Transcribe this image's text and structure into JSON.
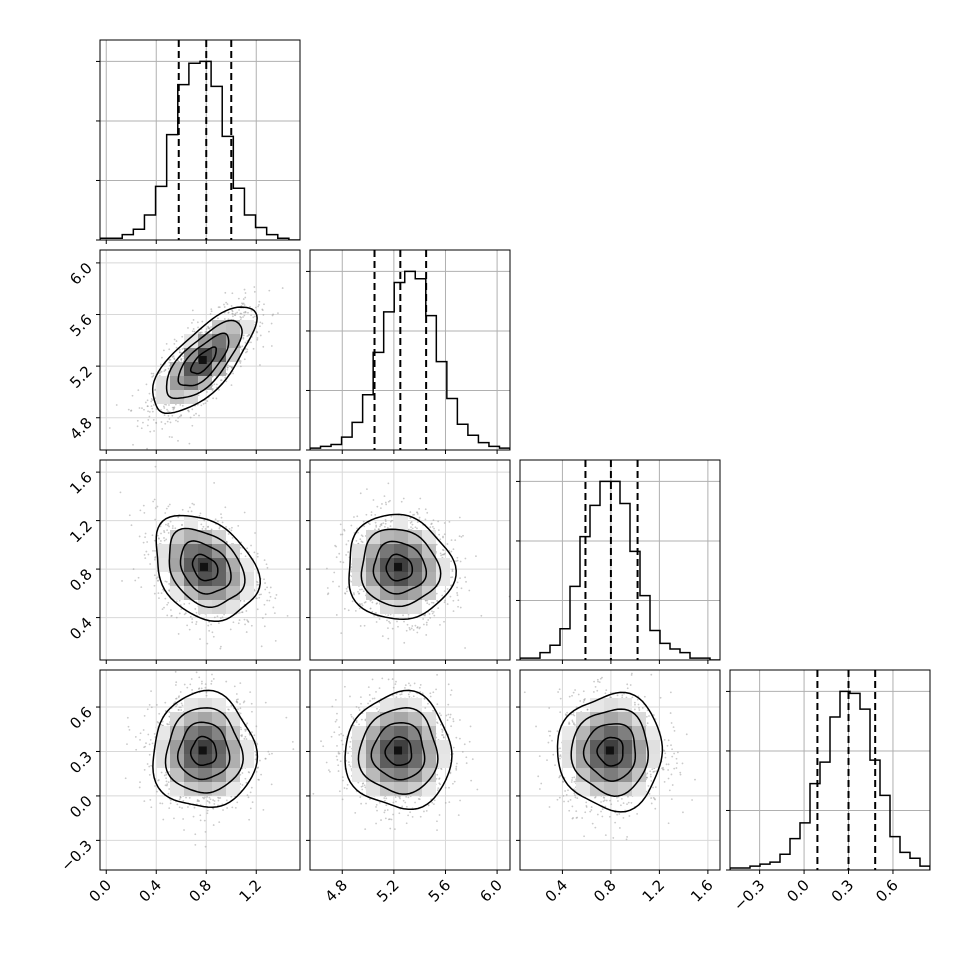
{
  "chart_data": {
    "type": "corner",
    "parameters": 4,
    "grid": true,
    "quantile_lines": "dashed",
    "density_style": "grayscale 2D histogram with contours and scatter",
    "colors": {
      "line": "#000000",
      "grid": "#b0b0b0",
      "scatter": "#9e9e9e"
    },
    "axes": [
      {
        "range": [
          -0.05,
          1.55
        ],
        "ticks": [
          0.0,
          0.4,
          0.8,
          1.2
        ],
        "tick_labels": [
          "0.0",
          "0.4",
          "0.8",
          "1.2"
        ],
        "quantiles": [
          0.58,
          0.8,
          1.0
        ]
      },
      {
        "range": [
          4.55,
          6.1
        ],
        "ticks": [
          4.8,
          5.2,
          5.6,
          6.0
        ],
        "tick_labels": [
          "4.8",
          "5.2",
          "5.6",
          "6.0"
        ],
        "quantiles": [
          5.05,
          5.25,
          5.45
        ]
      },
      {
        "range": [
          0.05,
          1.7
        ],
        "ticks": [
          0.4,
          0.8,
          1.2,
          1.6
        ],
        "tick_labels": [
          "0.4",
          "0.8",
          "1.2",
          "1.6"
        ],
        "quantiles": [
          0.59,
          0.8,
          1.02
        ]
      },
      {
        "range": [
          -0.5,
          0.85
        ],
        "ticks": [
          -0.3,
          0.0,
          0.3,
          0.6
        ],
        "tick_labels": [
          "−0.3",
          "0.0",
          "0.3",
          "0.6"
        ],
        "quantiles": [
          0.09,
          0.3,
          0.48
        ]
      }
    ],
    "histograms": [
      {
        "counts": [
          1,
          1,
          3,
          6,
          14,
          30,
          59,
          87,
          99,
          100,
          86,
          58,
          29,
          14,
          7,
          3,
          1,
          0
        ]
      },
      {
        "counts": [
          1,
          2,
          3,
          7,
          15,
          30,
          53,
          75,
          91,
          97,
          93,
          73,
          48,
          28,
          14,
          8,
          4,
          2,
          1
        ]
      },
      {
        "counts": [
          1,
          1,
          4,
          8,
          17,
          40,
          67,
          84,
          97,
          97,
          85,
          59,
          35,
          16,
          9,
          6,
          4,
          1,
          1,
          0
        ]
      },
      {
        "counts": [
          1,
          1,
          2,
          3,
          4,
          8,
          16,
          24,
          44,
          55,
          78,
          91,
          90,
          82,
          56,
          38,
          17,
          9,
          6,
          2
        ]
      }
    ],
    "joints": [
      {
        "x": 0,
        "y": 1,
        "center": [
          0.78,
          5.24
        ],
        "sd": [
          0.2,
          0.2
        ],
        "rho": 0.72
      },
      {
        "x": 0,
        "y": 2,
        "center": [
          0.79,
          0.81
        ],
        "sd": [
          0.2,
          0.21
        ],
        "rho": -0.28
      },
      {
        "x": 1,
        "y": 2,
        "center": [
          5.24,
          0.81
        ],
        "sd": [
          0.2,
          0.21
        ],
        "rho": -0.05
      },
      {
        "x": 0,
        "y": 3,
        "center": [
          0.78,
          0.3
        ],
        "sd": [
          0.2,
          0.19
        ],
        "rho": 0.0
      },
      {
        "x": 1,
        "y": 3,
        "center": [
          5.24,
          0.3
        ],
        "sd": [
          0.2,
          0.19
        ],
        "rho": 0.0
      },
      {
        "x": 2,
        "y": 3,
        "center": [
          0.8,
          0.3
        ],
        "sd": [
          0.21,
          0.19
        ],
        "rho": 0.0
      }
    ]
  }
}
